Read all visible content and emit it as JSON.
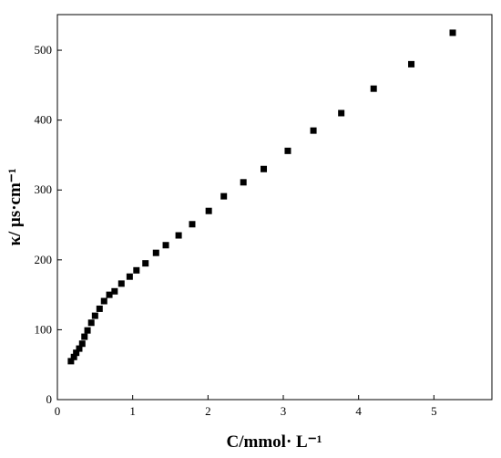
{
  "chart_data": {
    "type": "scatter",
    "x_label": "C/mmol· L⁻¹",
    "y_label": "κ/ μs·cm⁻¹",
    "color": "#000000",
    "x": [
      0.18,
      0.22,
      0.25,
      0.29,
      0.33,
      0.36,
      0.4,
      0.45,
      0.5,
      0.56,
      0.62,
      0.69,
      0.76,
      0.85,
      0.96,
      1.05,
      1.17,
      1.31,
      1.44,
      1.61,
      1.79,
      2.01,
      2.21,
      2.47,
      2.74,
      3.06,
      3.4,
      3.77,
      4.2,
      4.7,
      5.25
    ],
    "values": [
      55,
      61,
      67,
      73,
      80,
      90,
      99,
      110,
      120,
      130,
      141,
      150,
      155,
      166,
      176,
      185,
      195,
      210,
      221,
      235,
      251,
      270,
      291,
      311,
      330,
      356,
      385,
      410,
      445,
      480,
      525
    ],
    "xlim": [
      0,
      5.77
    ],
    "xticks": [
      0,
      1,
      2,
      3,
      4,
      5
    ],
    "ylim": [
      0,
      551
    ],
    "yticks": [
      0,
      100,
      200,
      300,
      400,
      500
    ]
  }
}
